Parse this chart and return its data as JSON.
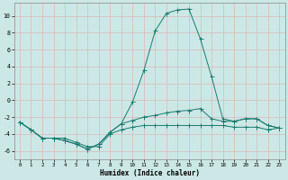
{
  "xlabel": "Humidex (Indice chaleur)",
  "bg_color": "#cce8e6",
  "grid_color": "#b0d4d0",
  "line_color": "#1a7a6e",
  "xlim": [
    -0.5,
    23.5
  ],
  "ylim": [
    -7.0,
    11.5
  ],
  "xticks": [
    0,
    1,
    2,
    3,
    4,
    5,
    6,
    7,
    8,
    9,
    10,
    11,
    12,
    13,
    14,
    15,
    16,
    17,
    18,
    19,
    20,
    21,
    22,
    23
  ],
  "yticks": [
    -6,
    -4,
    -2,
    0,
    2,
    4,
    6,
    8,
    10
  ],
  "line1_x": [
    0,
    1,
    2,
    3,
    4,
    5,
    6,
    7,
    8,
    9,
    10,
    11,
    12,
    13,
    14,
    15,
    16,
    17,
    18,
    19,
    20,
    21,
    22,
    23
  ],
  "line1_y": [
    -2.6,
    -3.5,
    -4.5,
    -4.5,
    -4.5,
    -5.0,
    -5.5,
    -5.5,
    -4.0,
    -3.5,
    -3.2,
    -3.0,
    -3.0,
    -3.0,
    -3.0,
    -3.0,
    -3.0,
    -3.0,
    -3.0,
    -3.2,
    -3.2,
    -3.2,
    -3.5,
    -3.3
  ],
  "line2_x": [
    0,
    1,
    2,
    3,
    4,
    5,
    6,
    7,
    8,
    9,
    10,
    11,
    12,
    13,
    14,
    15,
    16,
    17,
    18,
    19,
    20,
    21,
    22,
    23
  ],
  "line2_y": [
    -2.6,
    -3.5,
    -4.5,
    -4.5,
    -4.8,
    -5.2,
    -5.8,
    -5.2,
    -3.8,
    -2.8,
    -2.4,
    -2.0,
    -1.8,
    -1.5,
    -1.3,
    -1.2,
    -1.0,
    -2.2,
    -2.5,
    -2.5,
    -2.2,
    -2.2,
    -3.0,
    -3.3
  ],
  "line3_x": [
    0,
    1,
    2,
    3,
    4,
    5,
    6,
    7,
    8,
    9,
    10,
    11,
    12,
    13,
    14,
    15,
    16,
    17,
    18,
    19,
    20,
    21,
    22,
    23
  ],
  "line3_y": [
    -2.6,
    -3.5,
    -4.5,
    -4.5,
    -4.8,
    -5.2,
    -5.8,
    -5.2,
    -3.8,
    -2.8,
    -0.2,
    3.5,
    8.2,
    10.3,
    10.7,
    10.8,
    7.3,
    2.8,
    -2.2,
    -2.5,
    -2.2,
    -2.2,
    -3.0,
    -3.3
  ]
}
